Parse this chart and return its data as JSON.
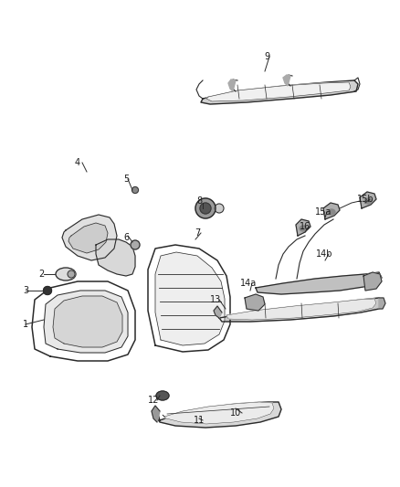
{
  "bg_color": "#ffffff",
  "lc": "#2a2a2a",
  "label_color": "#1a1a1a",
  "figsize": [
    4.38,
    5.33
  ],
  "dpi": 100,
  "num_labels": [
    [
      "1",
      28,
      355
    ],
    [
      "2",
      45,
      300
    ],
    [
      "3",
      28,
      318
    ],
    [
      "4",
      85,
      178
    ],
    [
      "5",
      138,
      196
    ],
    [
      "6",
      138,
      260
    ],
    [
      "7",
      216,
      255
    ],
    [
      "8",
      218,
      220
    ],
    [
      "9",
      292,
      62
    ],
    [
      "10",
      258,
      452
    ],
    [
      "11",
      218,
      460
    ],
    [
      "12",
      168,
      438
    ],
    [
      "13",
      236,
      328
    ],
    [
      "14a",
      272,
      310
    ],
    [
      "14b",
      355,
      278
    ],
    [
      "15a",
      354,
      232
    ],
    [
      "15b",
      400,
      218
    ],
    [
      "16",
      334,
      248
    ]
  ],
  "leader_lines": [
    [
      38,
      355,
      55,
      345
    ],
    [
      55,
      300,
      72,
      300
    ],
    [
      38,
      318,
      52,
      318
    ],
    [
      95,
      178,
      100,
      188
    ],
    [
      148,
      196,
      148,
      208
    ],
    [
      148,
      258,
      148,
      268
    ],
    [
      226,
      255,
      210,
      262
    ],
    [
      228,
      220,
      225,
      228
    ],
    [
      300,
      64,
      292,
      78
    ],
    [
      268,
      452,
      260,
      447
    ],
    [
      228,
      460,
      220,
      456
    ],
    [
      178,
      438,
      178,
      433
    ],
    [
      246,
      328,
      252,
      335
    ],
    [
      282,
      310,
      276,
      316
    ],
    [
      365,
      278,
      358,
      285
    ],
    [
      364,
      232,
      358,
      240
    ],
    [
      410,
      218,
      404,
      228
    ],
    [
      344,
      248,
      340,
      256
    ]
  ]
}
